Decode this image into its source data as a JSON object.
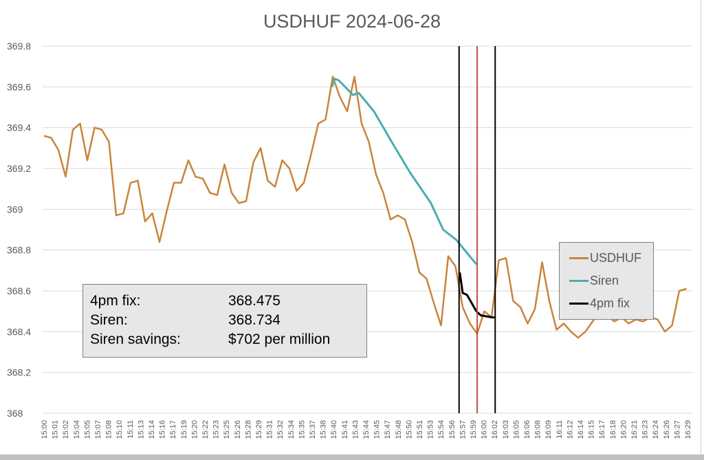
{
  "chart_data": {
    "type": "line",
    "title": "USDHUF 2024-06-28",
    "xlabel": "",
    "ylabel": "",
    "ylim": [
      368,
      369.8
    ],
    "yticks": [
      "368",
      "368.2",
      "368.4",
      "368.6",
      "368.8",
      "369",
      "369.2",
      "369.4",
      "369.6",
      "369.8"
    ],
    "xtick_labels": [
      "15:00",
      "15:01",
      "15:02",
      "15:04",
      "15:05",
      "15:07",
      "15:08",
      "15:10",
      "15:11",
      "15:13",
      "15:14",
      "15:16",
      "15:17",
      "15:19",
      "15:20",
      "15:22",
      "15:23",
      "15:25",
      "15:26",
      "15:28",
      "15:29",
      "15:31",
      "15:32",
      "15:34",
      "15:35",
      "15:37",
      "15:38",
      "15:40",
      "15:41",
      "15:43",
      "15:44",
      "15:45",
      "15:47",
      "15:48",
      "15:50",
      "15:51",
      "15:53",
      "15:54",
      "15:56",
      "15:57",
      "15:59",
      "16:00",
      "16:02",
      "16:03",
      "16:05",
      "16:06",
      "16:08",
      "16:09",
      "16:11",
      "16:12",
      "16:14",
      "16:15",
      "16:17",
      "16:18",
      "16:20",
      "16:21",
      "16:23",
      "16:24",
      "16:26",
      "16:27",
      "16:29"
    ],
    "grid": true,
    "legend_position": "right",
    "series": [
      {
        "name": "USDHUF",
        "color": "#c9843a",
        "points": [
          [
            "15:00",
            369.36
          ],
          [
            "15:01",
            369.35
          ],
          [
            "15:02",
            369.29
          ],
          [
            "15:03",
            369.16
          ],
          [
            "15:04",
            369.39
          ],
          [
            "15:05",
            369.42
          ],
          [
            "15:06",
            369.24
          ],
          [
            "15:07",
            369.4
          ],
          [
            "15:08",
            369.39
          ],
          [
            "15:09",
            369.33
          ],
          [
            "15:10",
            368.97
          ],
          [
            "15:11",
            368.98
          ],
          [
            "15:12",
            369.13
          ],
          [
            "15:13",
            369.14
          ],
          [
            "15:14",
            368.94
          ],
          [
            "15:15",
            368.98
          ],
          [
            "15:16",
            368.84
          ],
          [
            "15:17",
            368.99
          ],
          [
            "15:18",
            369.13
          ],
          [
            "15:19",
            369.13
          ],
          [
            "15:20",
            369.24
          ],
          [
            "15:21",
            369.16
          ],
          [
            "15:22",
            369.15
          ],
          [
            "15:23",
            369.08
          ],
          [
            "15:24",
            369.07
          ],
          [
            "15:25",
            369.22
          ],
          [
            "15:26",
            369.08
          ],
          [
            "15:27",
            369.03
          ],
          [
            "15:28",
            369.04
          ],
          [
            "15:29",
            369.23
          ],
          [
            "15:30",
            369.3
          ],
          [
            "15:31",
            369.14
          ],
          [
            "15:32",
            369.11
          ],
          [
            "15:33",
            369.24
          ],
          [
            "15:34",
            369.2
          ],
          [
            "15:35",
            369.09
          ],
          [
            "15:36",
            369.13
          ],
          [
            "15:37",
            369.27
          ],
          [
            "15:38",
            369.42
          ],
          [
            "15:39",
            369.44
          ],
          [
            "15:40",
            369.65
          ],
          [
            "15:41",
            369.55
          ],
          [
            "15:42",
            369.48
          ],
          [
            "15:43",
            369.65
          ],
          [
            "15:44",
            369.42
          ],
          [
            "15:45",
            369.33
          ],
          [
            "15:46",
            369.17
          ],
          [
            "15:47",
            369.08
          ],
          [
            "15:48",
            368.95
          ],
          [
            "15:49",
            368.97
          ],
          [
            "15:50",
            368.95
          ],
          [
            "15:51",
            368.84
          ],
          [
            "15:52",
            368.69
          ],
          [
            "15:53",
            368.66
          ],
          [
            "15:54",
            368.54
          ],
          [
            "15:55",
            368.43
          ],
          [
            "15:56",
            368.77
          ],
          [
            "15:57",
            368.72
          ],
          [
            "15:58",
            368.52
          ],
          [
            "15:59",
            368.44
          ],
          [
            "16:00",
            368.39
          ],
          [
            "16:01",
            368.5
          ],
          [
            "16:02",
            368.47
          ],
          [
            "16:03",
            368.75
          ],
          [
            "16:04",
            368.76
          ],
          [
            "16:05",
            368.55
          ],
          [
            "16:06",
            368.52
          ],
          [
            "16:07",
            368.44
          ],
          [
            "16:08",
            368.51
          ],
          [
            "16:09",
            368.74
          ],
          [
            "16:10",
            368.55
          ],
          [
            "16:11",
            368.41
          ],
          [
            "16:12",
            368.44
          ],
          [
            "16:13",
            368.4
          ],
          [
            "16:14",
            368.37
          ],
          [
            "16:15",
            368.4
          ],
          [
            "16:16",
            368.45
          ],
          [
            "16:17",
            368.5
          ],
          [
            "16:18",
            368.48
          ],
          [
            "16:19",
            368.45
          ],
          [
            "16:20",
            368.47
          ],
          [
            "16:21",
            368.44
          ],
          [
            "16:22",
            368.46
          ],
          [
            "16:23",
            368.45
          ],
          [
            "16:24",
            368.47
          ],
          [
            "16:25",
            368.46
          ],
          [
            "16:26",
            368.4
          ],
          [
            "16:27",
            368.43
          ],
          [
            "16:28",
            368.6
          ],
          [
            "16:29",
            368.61
          ]
        ]
      },
      {
        "name": "Siren",
        "color": "#4bacb0",
        "points": [
          [
            "15:39:54",
            369.6
          ],
          [
            "15:40:18",
            369.64
          ],
          [
            "15:40:54",
            369.63
          ],
          [
            "15:42:48",
            369.56
          ],
          [
            "15:43:36",
            369.57
          ],
          [
            "15:45:42",
            369.48
          ],
          [
            "15:48:30",
            369.31
          ],
          [
            "15:50:42",
            369.18
          ],
          [
            "15:53:36",
            369.03
          ],
          [
            "15:55:18",
            368.9
          ],
          [
            "15:57:06",
            368.85
          ],
          [
            "15:59:54",
            368.73
          ]
        ]
      },
      {
        "name": "4pm fix",
        "color": "#000000",
        "points": [
          [
            "15:57:36",
            368.69
          ],
          [
            "15:58:00",
            368.59
          ],
          [
            "15:58:36",
            368.58
          ],
          [
            "15:59:54",
            368.5
          ],
          [
            "16:00:30",
            368.48
          ],
          [
            "16:02:06",
            368.47
          ],
          [
            "16:02:30",
            368.47
          ]
        ]
      }
    ],
    "vertical_lines": [
      {
        "t": "15:57:30",
        "color": "#000000"
      },
      {
        "t": "16:00:00",
        "color": "#c0504d"
      },
      {
        "t": "16:02:30",
        "color": "#000000"
      }
    ]
  },
  "infobox": {
    "rows": [
      {
        "label": "4pm fix:",
        "value": "368.475"
      },
      {
        "label": "Siren:",
        "value": "368.734"
      },
      {
        "label": "Siren savings:",
        "value": "$702 per million"
      }
    ]
  }
}
